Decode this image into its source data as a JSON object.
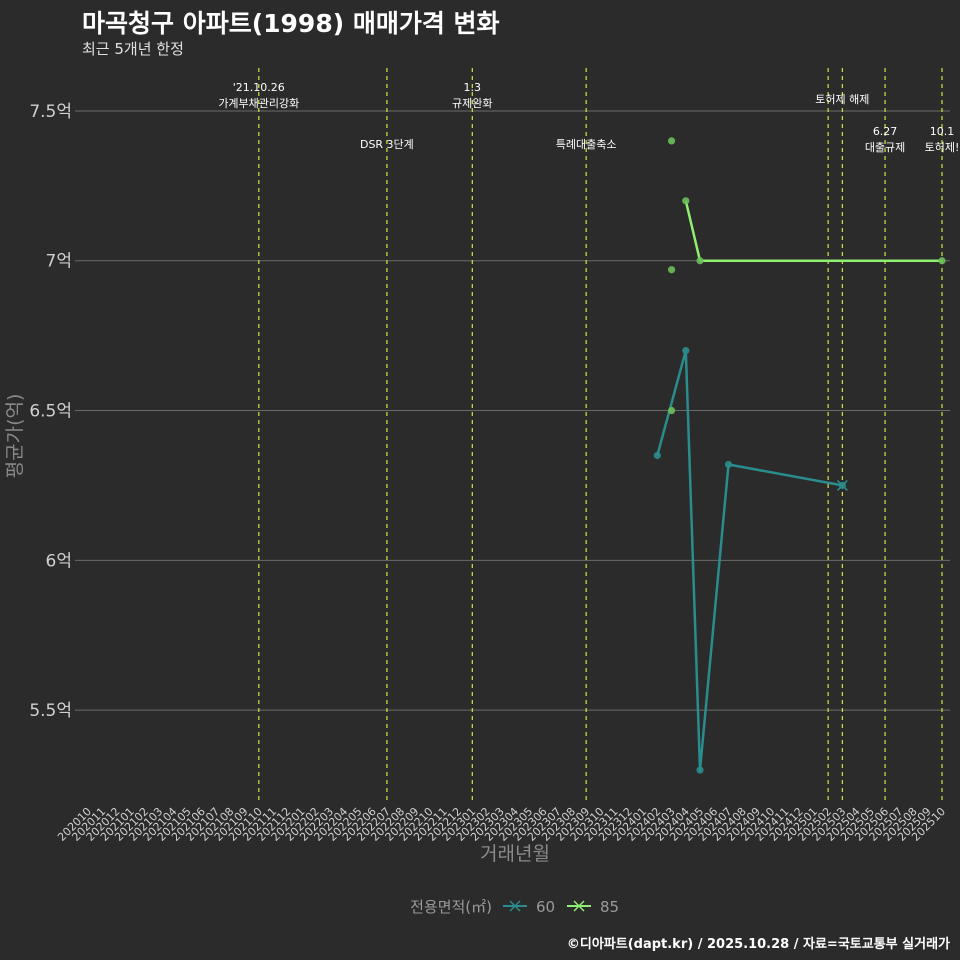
{
  "header": {
    "title": "마곡청구 아파트(1998) 매매가격 변화",
    "subtitle": "최근 5개년 한정"
  },
  "footer": {
    "credit": "©디아파트(dapt.kr) / 2025.10.28 / 자료=국토교통부 실거래가"
  },
  "colors": {
    "background": "#2b2b2b",
    "grid": "#6b6b6b",
    "event_line": "#d4e43a",
    "series_60": "#2a8c8c",
    "series_85": "#90ee70",
    "points_85": "#6bbf5a"
  },
  "chart_data": {
    "type": "line",
    "title": "마곡청구 아파트(1998) 매매가격 변화",
    "subtitle": "최근 5개년 한정",
    "xlabel": "거래년월",
    "ylabel": "평균가(억)",
    "ylim": [
      5.2,
      7.65
    ],
    "y_ticks": [
      5.5,
      6,
      6.5,
      7,
      7.5
    ],
    "y_tick_labels": [
      "5.5억",
      "6억",
      "6.5억",
      "7억",
      "7.5억"
    ],
    "categories": [
      "202010",
      "202011",
      "202012",
      "202101",
      "202102",
      "202103",
      "202104",
      "202105",
      "202106",
      "202107",
      "202108",
      "202109",
      "202110",
      "202111",
      "202112",
      "202201",
      "202202",
      "202203",
      "202204",
      "202205",
      "202206",
      "202207",
      "202208",
      "202209",
      "202210",
      "202211",
      "202212",
      "202301",
      "202302",
      "202303",
      "202304",
      "202305",
      "202306",
      "202307",
      "202308",
      "202309",
      "202310",
      "202311",
      "202312",
      "202401",
      "202402",
      "202403",
      "202404",
      "202405",
      "202406",
      "202407",
      "202408",
      "202409",
      "202410",
      "202411",
      "202412",
      "202501",
      "202502",
      "202503",
      "202504",
      "202505",
      "202506",
      "202507",
      "202508",
      "202509",
      "202510"
    ],
    "legend": {
      "title": "전용면적(㎡)",
      "placement": "bottom"
    },
    "series": [
      {
        "name": "60",
        "line": [
          [
            "202402",
            6.35
          ],
          [
            "202404",
            6.7
          ],
          [
            "202405",
            5.3
          ],
          [
            "202407",
            6.32
          ],
          [
            "202503",
            6.25
          ]
        ],
        "points": [
          [
            "202402",
            6.35
          ],
          [
            "202404",
            6.7
          ],
          [
            "202405",
            5.3
          ],
          [
            "202407",
            6.32
          ],
          [
            "202503",
            6.25
          ]
        ]
      },
      {
        "name": "85",
        "line": [
          [
            "202404",
            7.2
          ],
          [
            "202405",
            7.0
          ],
          [
            "202510",
            7.0
          ]
        ],
        "points": [
          [
            "202403",
            7.4
          ],
          [
            "202403",
            6.97
          ],
          [
            "202403",
            6.5
          ],
          [
            "202404",
            7.2
          ],
          [
            "202405",
            7.0
          ],
          [
            "202510",
            7.0
          ]
        ]
      }
    ],
    "events": [
      {
        "x": "202110",
        "lines": [
          "'21.10.26",
          "가계부채관리강화"
        ],
        "row": 1
      },
      {
        "x": "202207",
        "lines": [
          "DSR 3단계"
        ],
        "row": 2
      },
      {
        "x": "202301",
        "lines": [
          "1.3",
          "규제완화"
        ],
        "row": 1
      },
      {
        "x": "202309",
        "lines": [
          "특례대출축소"
        ],
        "row": 2
      },
      {
        "x": "202502",
        "lines": [],
        "row": 1
      },
      {
        "x": "202503",
        "lines": [
          "토허제 해제"
        ],
        "row": 0
      },
      {
        "x": "202506",
        "lines": [
          "6.27",
          "대출규제"
        ],
        "row": 3
      },
      {
        "x": "202510",
        "lines": [
          "10.1",
          "토허제!"
        ],
        "row": 3
      }
    ]
  }
}
